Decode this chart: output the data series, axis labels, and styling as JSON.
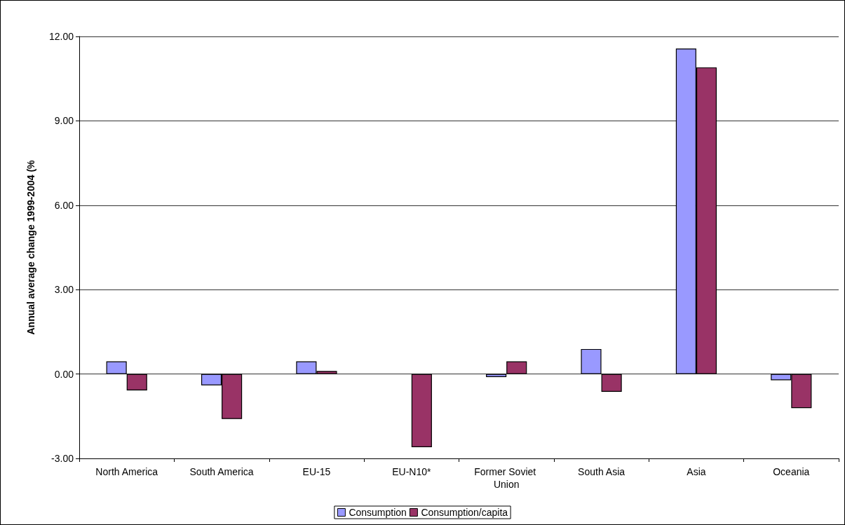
{
  "chart_data": {
    "type": "bar",
    "ylabel": "Annual average change 1999-2004 (%",
    "categories": [
      "North America",
      "South America",
      "EU-15",
      "EU-N10*",
      "Former Soviet Union",
      "South Asia",
      "Asia",
      "Oceania"
    ],
    "series": [
      {
        "name": "Consumption",
        "color": "#9999ff",
        "values": [
          0.45,
          -0.4,
          0.45,
          null,
          -0.11,
          0.89,
          11.57,
          -0.22
        ]
      },
      {
        "name": "Consumption/capita",
        "color": "#993366",
        "values": [
          -0.58,
          -1.6,
          0.11,
          -2.6,
          0.45,
          -0.63,
          10.9,
          -1.21
        ]
      }
    ],
    "ylim": [
      -3,
      12
    ],
    "yticks": [
      {
        "value": -3,
        "label": "-3.00"
      },
      {
        "value": 0,
        "label": "0.00"
      },
      {
        "value": 3,
        "label": "3.00"
      },
      {
        "value": 6,
        "label": "6.00"
      },
      {
        "value": 9,
        "label": "9.00"
      },
      {
        "value": 12,
        "label": "12.00"
      }
    ],
    "grid": "y",
    "legend": "bottom"
  }
}
